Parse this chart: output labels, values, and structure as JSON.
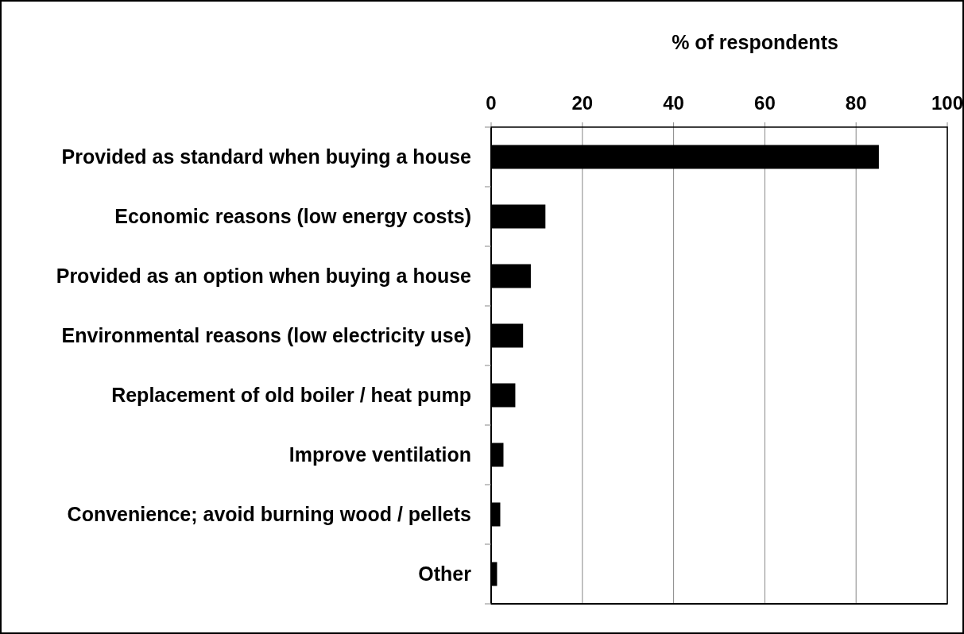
{
  "chart_data": {
    "type": "bar",
    "orientation": "horizontal",
    "xlabel": "% of respondents",
    "categories": [
      "Provided as standard when buying a house",
      "Economic reasons (low energy costs)",
      "Provided as an option when buying a house",
      "Environmental reasons (low electricity use)",
      "Replacement of old boiler / heat pump",
      "Improve ventilation",
      "Convenience; avoid burning wood / pellets",
      "Other"
    ],
    "values": [
      85,
      11.9,
      8.7,
      7,
      5.3,
      2.7,
      2,
      1.3
    ],
    "color": "#000000",
    "xlim": [
      0,
      100
    ],
    "xticks": [
      0,
      20,
      40,
      60,
      80,
      100
    ],
    "grid": "x"
  }
}
